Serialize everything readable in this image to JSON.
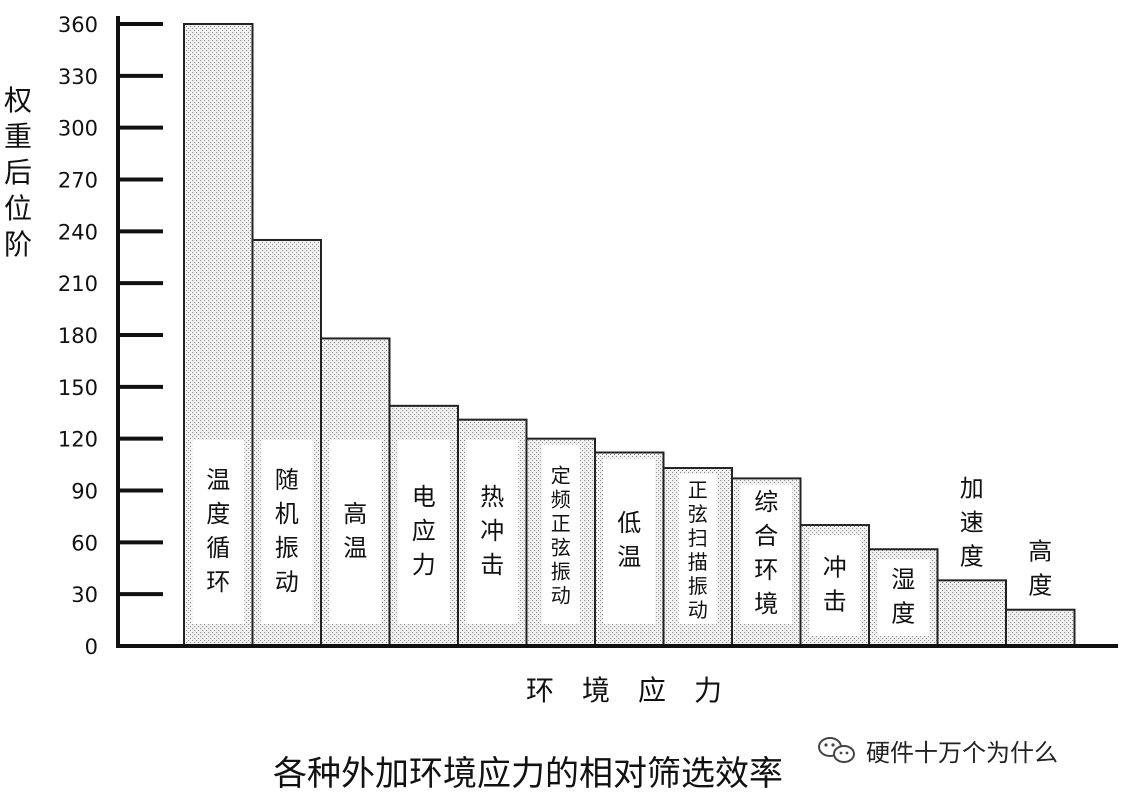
{
  "chart_data": {
    "type": "bar",
    "title": "各种外加环境应力的相对筛选效率",
    "xlabel": "环　境　应　力",
    "ylabel": "权重后位阶",
    "ylim": [
      0,
      360
    ],
    "yticks": [
      0,
      30,
      60,
      90,
      120,
      150,
      180,
      210,
      240,
      270,
      300,
      330,
      360
    ],
    "grid": false,
    "categories": [
      "温度循环",
      "随机振动",
      "高温",
      "电应力",
      "热冲击",
      "定频正弦振动",
      "低温",
      "正弦扫描振动",
      "综合环境",
      "冲击",
      "湿度",
      "加速度",
      "高度"
    ],
    "values": [
      360,
      235,
      178,
      139,
      131,
      120,
      112,
      103,
      97,
      70,
      56,
      38,
      21
    ]
  },
  "watermark": {
    "text": "硬件十万个为什么",
    "icon": "wechat-icon"
  },
  "colors": {
    "bar_fill": "#e6e6e6",
    "bar_stroke": "#222222",
    "label_box": "#ffffff",
    "axis": "#111111"
  }
}
